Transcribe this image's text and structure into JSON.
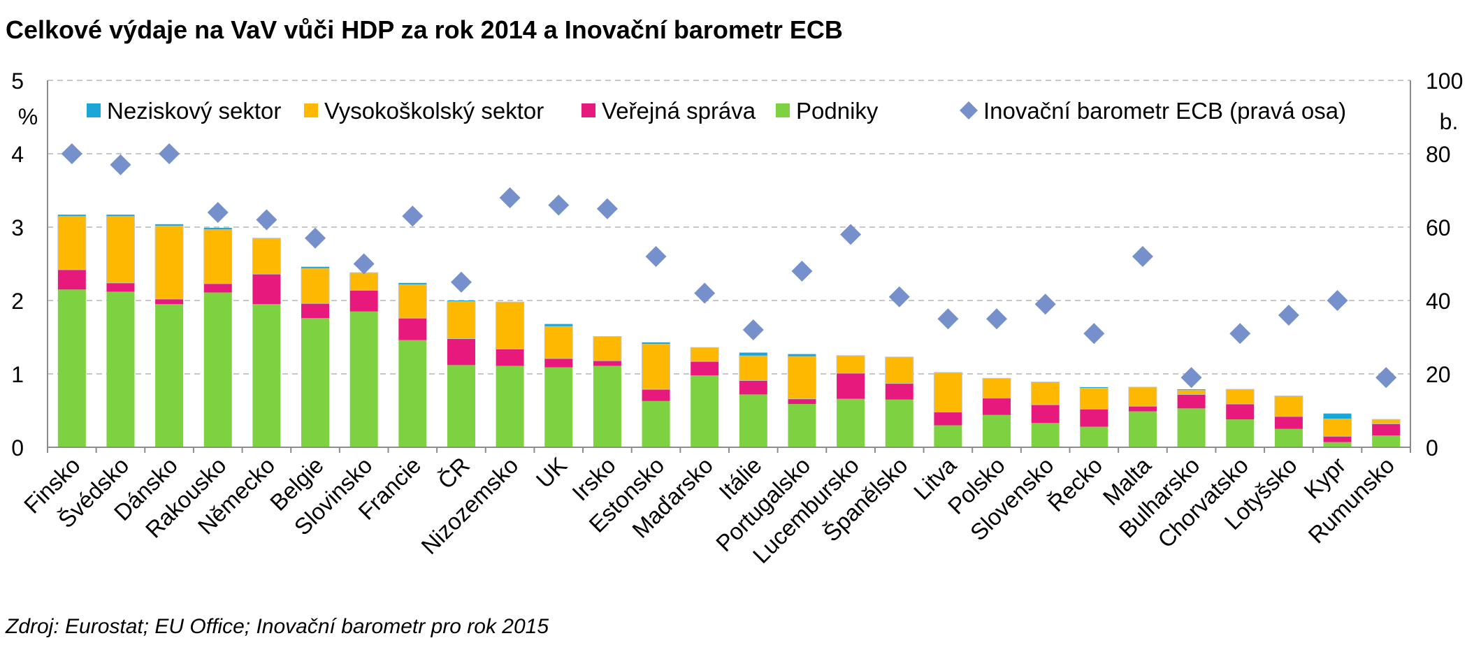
{
  "title": "Celkové výdaje na VaV vůči HDP za rok 2014 a Inovační barometr ECB",
  "source": "Zdroj: Eurostat; EU Office; Inovační barometr pro rok 2015",
  "colors": {
    "nezisk": "#1aa7d8",
    "vs": "#ffb800",
    "vs_stroke": "#c7c7c7",
    "verejna": "#e8197d",
    "podniky": "#7ed140",
    "barometr": "#7590cb",
    "grid": "#c8c8c8",
    "axis": "#8c8c8c"
  },
  "chart_data": {
    "type": "bar",
    "stacked": true,
    "categories": [
      "Finsko",
      "Švédsko",
      "Dánsko",
      "Rakousko",
      "Německo",
      "Belgie",
      "Slovinsko",
      "Francie",
      "ČR",
      "Nizozemsko",
      "UK",
      "Irsko",
      "Estonsko",
      "Maďarsko",
      "Itálie",
      "Portugalsko",
      "Lucembursko",
      "Španělsko",
      "Litva",
      "Polsko",
      "Slovensko",
      "Řecko",
      "Malta",
      "Bulharsko",
      "Chorvatsko",
      "Lotyšsko",
      "Kypr",
      "Rumunsko"
    ],
    "series": [
      {
        "name": "Podniky",
        "key": "podniky",
        "values": [
          2.15,
          2.12,
          1.95,
          2.11,
          1.95,
          1.76,
          1.85,
          1.46,
          1.12,
          1.11,
          1.09,
          1.11,
          0.63,
          0.98,
          0.72,
          0.59,
          0.66,
          0.65,
          0.3,
          0.44,
          0.33,
          0.28,
          0.49,
          0.53,
          0.38,
          0.25,
          0.07,
          0.16
        ]
      },
      {
        "name": "Veřejná správa",
        "key": "verejna",
        "values": [
          0.27,
          0.12,
          0.07,
          0.12,
          0.41,
          0.2,
          0.29,
          0.3,
          0.36,
          0.23,
          0.12,
          0.07,
          0.16,
          0.19,
          0.19,
          0.07,
          0.35,
          0.22,
          0.18,
          0.23,
          0.25,
          0.24,
          0.07,
          0.19,
          0.21,
          0.17,
          0.08,
          0.16
        ]
      },
      {
        "name": "Vysokoškolský sektor",
        "key": "vs",
        "values": [
          0.73,
          0.91,
          1.0,
          0.74,
          0.49,
          0.48,
          0.24,
          0.46,
          0.51,
          0.64,
          0.44,
          0.33,
          0.62,
          0.19,
          0.34,
          0.58,
          0.24,
          0.36,
          0.54,
          0.27,
          0.31,
          0.29,
          0.26,
          0.06,
          0.2,
          0.28,
          0.24,
          0.06
        ]
      },
      {
        "name": "Neziskový sektor",
        "key": "nezisk",
        "values": [
          0.02,
          0.02,
          0.02,
          0.02,
          0.0,
          0.02,
          0.0,
          0.02,
          0.01,
          0.0,
          0.03,
          0.0,
          0.02,
          0.0,
          0.04,
          0.03,
          0.0,
          0.0,
          0.0,
          0.0,
          0.0,
          0.01,
          0.0,
          0.01,
          0.0,
          0.0,
          0.07,
          0.0
        ]
      }
    ],
    "line_series": {
      "name": "Inovační barometr ECB (pravá osa)",
      "axis": "right",
      "values": [
        80,
        77,
        80,
        64,
        62,
        57,
        50,
        63,
        45,
        68,
        66,
        65,
        52,
        42,
        32,
        48,
        58,
        41,
        35,
        35,
        39,
        31,
        52,
        19,
        31,
        36,
        40,
        19
      ]
    },
    "ylabel": "%",
    "y2label": "b.",
    "ylim": [
      0,
      5
    ],
    "yticks": [
      0,
      1,
      2,
      3,
      4,
      5
    ],
    "y2lim": [
      0,
      100
    ],
    "y2ticks": [
      0,
      20,
      40,
      60,
      80,
      100
    ],
    "grid": true,
    "legend": "top",
    "legend_entries": [
      {
        "label": "Neziskový sektor",
        "key": "nezisk",
        "shape": "square"
      },
      {
        "label": "Vysokoškolský sektor",
        "key": "vs",
        "shape": "square"
      },
      {
        "label": "Veřejná správa",
        "key": "verejna",
        "shape": "square"
      },
      {
        "label": "Podniky",
        "key": "podniky",
        "shape": "square"
      },
      {
        "label": "Inovační barometr ECB (pravá osa)",
        "key": "barometr",
        "shape": "diamond"
      }
    ]
  }
}
